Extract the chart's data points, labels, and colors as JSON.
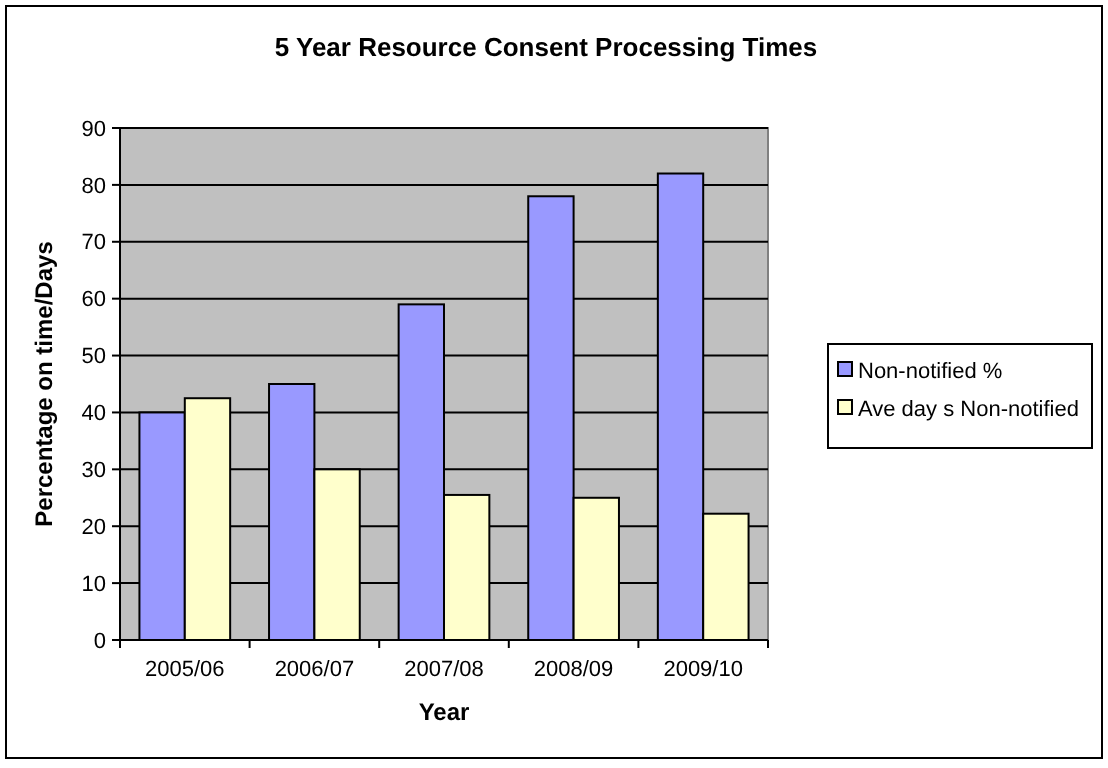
{
  "chart_data": {
    "type": "bar",
    "title": "5 Year Resource Consent Processing Times",
    "xlabel": "Year",
    "ylabel": "Percentage on time/Days",
    "categories": [
      "2005/06",
      "2006/07",
      "2007/08",
      "2008/09",
      "2009/10"
    ],
    "series": [
      {
        "name": "Non-notified %",
        "color": "#9999ff",
        "values": [
          40,
          45,
          59,
          78,
          82
        ]
      },
      {
        "name": "Ave day s Non-notified",
        "color": "#ffffcc",
        "values": [
          42.5,
          30,
          25.5,
          25,
          22.2
        ]
      }
    ],
    "ylim": [
      0,
      90
    ],
    "yticks": [
      0,
      10,
      20,
      30,
      40,
      50,
      60,
      70,
      80,
      90
    ],
    "grid": "y",
    "legend": "right"
  }
}
